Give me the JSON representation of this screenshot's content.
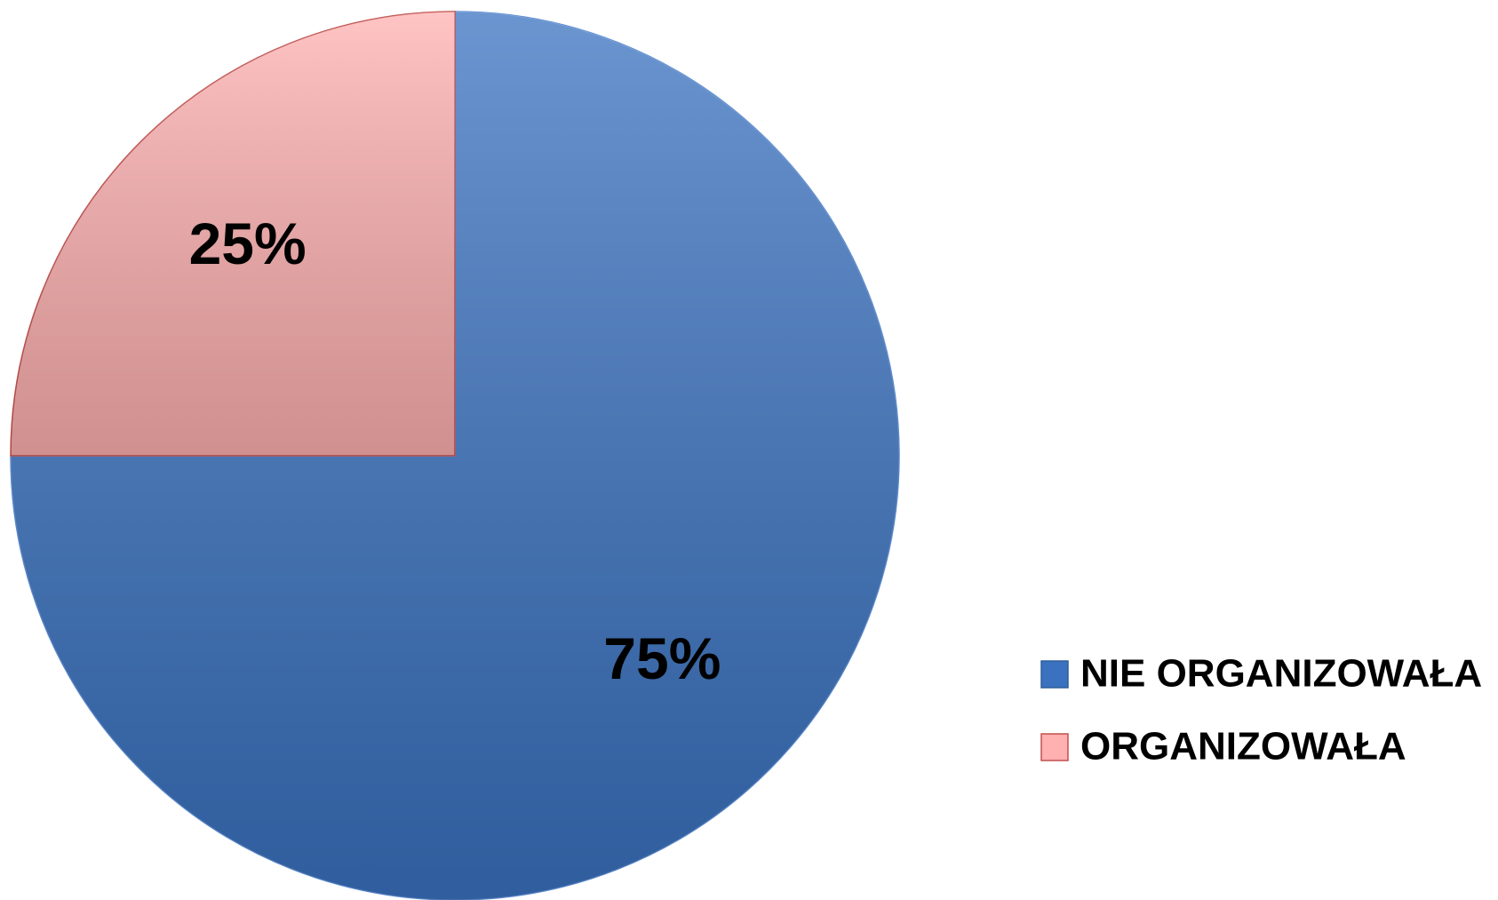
{
  "chart_data": {
    "type": "pie",
    "categories": [
      "NIE ORGANIZOWAŁA",
      "ORGANIZOWAŁA"
    ],
    "values": [
      75,
      25
    ],
    "value_labels": [
      "75%",
      "25%"
    ],
    "colors": [
      "#3a72c0",
      "#ffb0b0"
    ],
    "legend": "right"
  }
}
